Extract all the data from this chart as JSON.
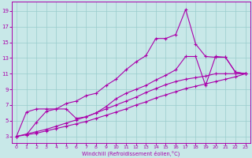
{
  "bg_color": "#c8e8e8",
  "line_color": "#aa00aa",
  "grid_color": "#99cccc",
  "xlabel": "Windchill (Refroidissement éolien,°C)",
  "x_ticks": [
    0,
    1,
    2,
    3,
    4,
    5,
    6,
    7,
    8,
    9,
    10,
    11,
    12,
    13,
    14,
    15,
    16,
    17,
    18,
    19,
    20,
    21,
    22,
    23
  ],
  "y_ticks": [
    3,
    5,
    7,
    9,
    11,
    13,
    15,
    17,
    19
  ],
  "xlim": [
    -0.5,
    23.5
  ],
  "ylim": [
    2.2,
    20.2
  ],
  "line1_x": [
    0,
    1,
    2,
    3,
    4,
    5,
    6,
    7,
    8,
    9,
    10,
    11,
    12,
    13,
    14,
    15,
    16,
    17,
    18,
    19,
    20,
    21,
    22,
    23
  ],
  "line1_y": [
    3,
    6.1,
    6.5,
    6.5,
    6.5,
    7.2,
    7.5,
    8.2,
    8.5,
    9.5,
    10.3,
    11.5,
    12.5,
    13.3,
    15.5,
    15.5,
    16,
    19.2,
    14.8,
    13.2,
    13.1,
    13.1,
    11.2,
    11.0
  ],
  "line2_x": [
    1,
    2,
    3,
    4,
    5,
    6,
    7,
    8,
    9,
    10,
    11,
    12,
    13,
    14,
    15,
    16,
    17,
    18,
    19,
    20,
    21,
    22,
    23
  ],
  "line2_y": [
    3.2,
    4.8,
    6.2,
    6.5,
    6.5,
    5.3,
    5.5,
    6.0,
    6.8,
    7.8,
    8.5,
    9.0,
    9.5,
    10.2,
    10.8,
    11.5,
    13.2,
    13.2,
    9.5,
    13.2,
    13.1,
    11.2,
    11.0
  ],
  "line3_x": [
    0,
    1,
    2,
    3,
    4,
    5,
    6,
    7,
    8,
    9,
    10,
    11,
    12,
    13,
    14,
    15,
    16,
    17,
    18,
    19,
    20,
    21,
    22,
    23
  ],
  "line3_y": [
    3,
    3.3,
    3.6,
    3.9,
    4.3,
    4.7,
    5.1,
    5.5,
    6.0,
    6.5,
    7.0,
    7.5,
    8.0,
    8.6,
    9.1,
    9.6,
    10.0,
    10.3,
    10.5,
    10.7,
    11.0,
    11.0,
    11.0,
    11.0
  ],
  "line4_x": [
    0,
    1,
    2,
    3,
    4,
    5,
    6,
    7,
    8,
    9,
    10,
    11,
    12,
    13,
    14,
    15,
    16,
    17,
    18,
    19,
    20,
    21,
    22,
    23
  ],
  "line4_y": [
    3,
    3.2,
    3.4,
    3.7,
    4.0,
    4.3,
    4.6,
    4.9,
    5.3,
    5.7,
    6.1,
    6.5,
    7.0,
    7.4,
    7.9,
    8.3,
    8.7,
    9.1,
    9.4,
    9.7,
    10.0,
    10.3,
    10.6,
    11.0
  ]
}
